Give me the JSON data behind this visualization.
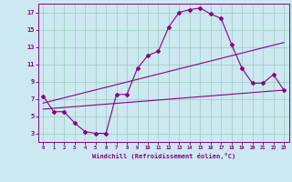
{
  "xlabel": "Windchill (Refroidissement éolien,°C)",
  "bg_color": "#cce8f0",
  "line_color": "#880088",
  "grid_color": "#99ccbb",
  "xlim": [
    -0.5,
    23.5
  ],
  "ylim": [
    2.0,
    18.0
  ],
  "xticks": [
    0,
    1,
    2,
    3,
    4,
    5,
    6,
    7,
    8,
    9,
    10,
    11,
    12,
    13,
    14,
    15,
    16,
    17,
    18,
    19,
    20,
    21,
    22,
    23
  ],
  "yticks": [
    3,
    5,
    7,
    9,
    11,
    13,
    15,
    17
  ],
  "line1_x": [
    0,
    1,
    2,
    3,
    4,
    5,
    6,
    7,
    8,
    9,
    10,
    11,
    12,
    13,
    14,
    15,
    16,
    17,
    18,
    19,
    20,
    21,
    22,
    23
  ],
  "line1_y": [
    7.3,
    5.5,
    5.5,
    4.2,
    3.2,
    3.0,
    3.0,
    7.5,
    7.5,
    10.5,
    12.0,
    12.5,
    15.3,
    17.0,
    17.3,
    17.5,
    16.8,
    16.3,
    13.3,
    10.5,
    8.8,
    8.8,
    9.8,
    8.0
  ],
  "line2_x": [
    0,
    23
  ],
  "line2_y": [
    6.5,
    13.5
  ],
  "line3_x": [
    0,
    23
  ],
  "line3_y": [
    5.8,
    8.0
  ],
  "marker": "D",
  "markersize": 2,
  "linewidth": 0.8
}
